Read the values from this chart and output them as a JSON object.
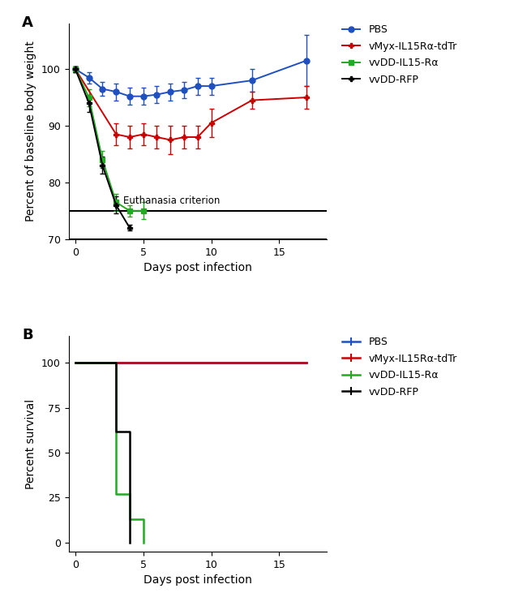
{
  "panel_A": {
    "title": "A",
    "ylabel": "Percent of baseline body weight",
    "xlabel": "Days post infection",
    "ylim": [
      70,
      108
    ],
    "xlim": [
      -0.5,
      18.5
    ],
    "yticks": [
      70,
      80,
      90,
      100
    ],
    "xticks": [
      0,
      5,
      10,
      15
    ],
    "euthanasia_y": 75,
    "euthanasia_label": "Euthanasia criterion",
    "series": {
      "PBS": {
        "color": "#2050C0",
        "marker": "o",
        "x": [
          0,
          1,
          2,
          3,
          4,
          5,
          6,
          7,
          8,
          9,
          10,
          13,
          17
        ],
        "y": [
          100,
          98.5,
          96.5,
          96,
          95.2,
          95.2,
          95.5,
          96.0,
          96.3,
          97.0,
          97.0,
          98.0,
          101.5
        ],
        "yerr": [
          0.5,
          1.0,
          1.2,
          1.5,
          1.5,
          1.5,
          1.5,
          1.5,
          1.5,
          1.5,
          1.5,
          2.0,
          4.5
        ]
      },
      "vMyx": {
        "color": "#CC0000",
        "marker": "P",
        "x": [
          0,
          3,
          4,
          5,
          6,
          7,
          8,
          9,
          10,
          13,
          17
        ],
        "y": [
          100,
          88.5,
          88.0,
          88.5,
          88.0,
          87.5,
          88.0,
          88.0,
          90.5,
          94.5,
          95.0
        ],
        "yerr": [
          0.5,
          2.0,
          2.0,
          2.0,
          2.0,
          2.5,
          2.0,
          2.0,
          2.5,
          1.5,
          2.0
        ]
      },
      "vvDD_IL15": {
        "color": "#22AA22",
        "marker": "s",
        "x": [
          0,
          1,
          2,
          3,
          4,
          5
        ],
        "y": [
          100,
          95.0,
          84.0,
          76.5,
          75.0,
          75.0
        ],
        "yerr": [
          0.5,
          1.5,
          1.5,
          1.5,
          1.0,
          1.5
        ]
      },
      "vvDD_RFP": {
        "color": "#000000",
        "marker": "P",
        "x": [
          0,
          1,
          2,
          3,
          4
        ],
        "y": [
          100,
          94.0,
          83.0,
          76.0,
          72.0
        ],
        "yerr": [
          0.5,
          1.5,
          1.5,
          1.5,
          0.5
        ]
      }
    },
    "legend_labels": [
      "PBS",
      "vMyx-IL15Rα-tdTr",
      "vvDD-IL15-Rα",
      "vvDD-RFP"
    ],
    "legend_colors": [
      "#2050C0",
      "#CC0000",
      "#22AA22",
      "#000000"
    ],
    "legend_markers": [
      "o",
      "P",
      "s",
      "P"
    ]
  },
  "panel_B": {
    "title": "B",
    "ylabel": "Percent survival",
    "xlabel": "Days post infection",
    "ylim": [
      -5,
      115
    ],
    "xlim": [
      -0.5,
      18.5
    ],
    "yticks": [
      0,
      25,
      50,
      75,
      100
    ],
    "xticks": [
      0,
      5,
      10,
      15
    ],
    "series": {
      "PBS": {
        "color": "#2050C0",
        "x": [
          0,
          17
        ],
        "y": [
          100,
          100
        ]
      },
      "vMyx": {
        "color": "#CC0000",
        "x": [
          0,
          17
        ],
        "y": [
          100,
          100
        ]
      },
      "vvDD_IL15": {
        "color": "#22AA22",
        "x": [
          0,
          3,
          4,
          5
        ],
        "y": [
          100,
          27,
          13,
          0
        ]
      },
      "vvDD_RFP": {
        "color": "#000000",
        "x": [
          0,
          3,
          4
        ],
        "y": [
          100,
          62,
          0
        ]
      }
    },
    "legend_labels": [
      "PBS",
      "vMyx-IL15Rα-tdTr",
      "vvDD-IL15-Rα",
      "vvDD-RFP"
    ],
    "legend_colors": [
      "#2050C0",
      "#CC0000",
      "#22AA22",
      "#000000"
    ],
    "legend_markers": [
      "|",
      "|",
      "|",
      "|"
    ]
  }
}
